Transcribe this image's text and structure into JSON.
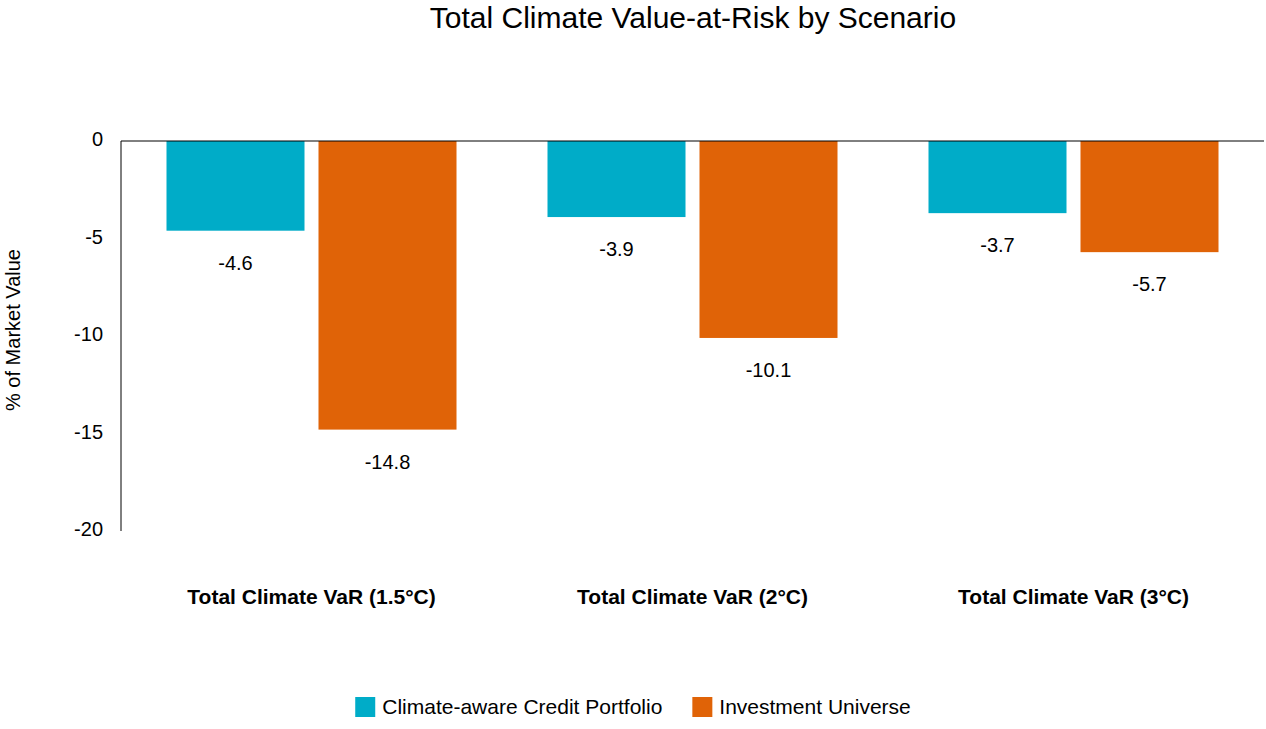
{
  "chart_data": {
    "type": "bar",
    "title": "Total Climate Value-at-Risk by Scenario",
    "y_label": "% of Market Value",
    "categories": [
      "Total Climate VaR (1.5°C)",
      "Total Climate VaR (2°C)",
      "Total Climate VaR (3°C)"
    ],
    "series": [
      {
        "name": "Climate-aware Credit Portfolio",
        "color": "#00acc8",
        "values": [
          -4.6,
          -3.9,
          -3.7
        ]
      },
      {
        "name": "Investment Universe",
        "color": "#e06307",
        "values": [
          -14.8,
          -10.1,
          -5.7
        ]
      }
    ],
    "ylim": [
      -20,
      0
    ],
    "yticks": [
      -20,
      -15,
      -10,
      -5,
      0
    ],
    "grid": false,
    "data_labels": true,
    "legend": "bottom"
  }
}
